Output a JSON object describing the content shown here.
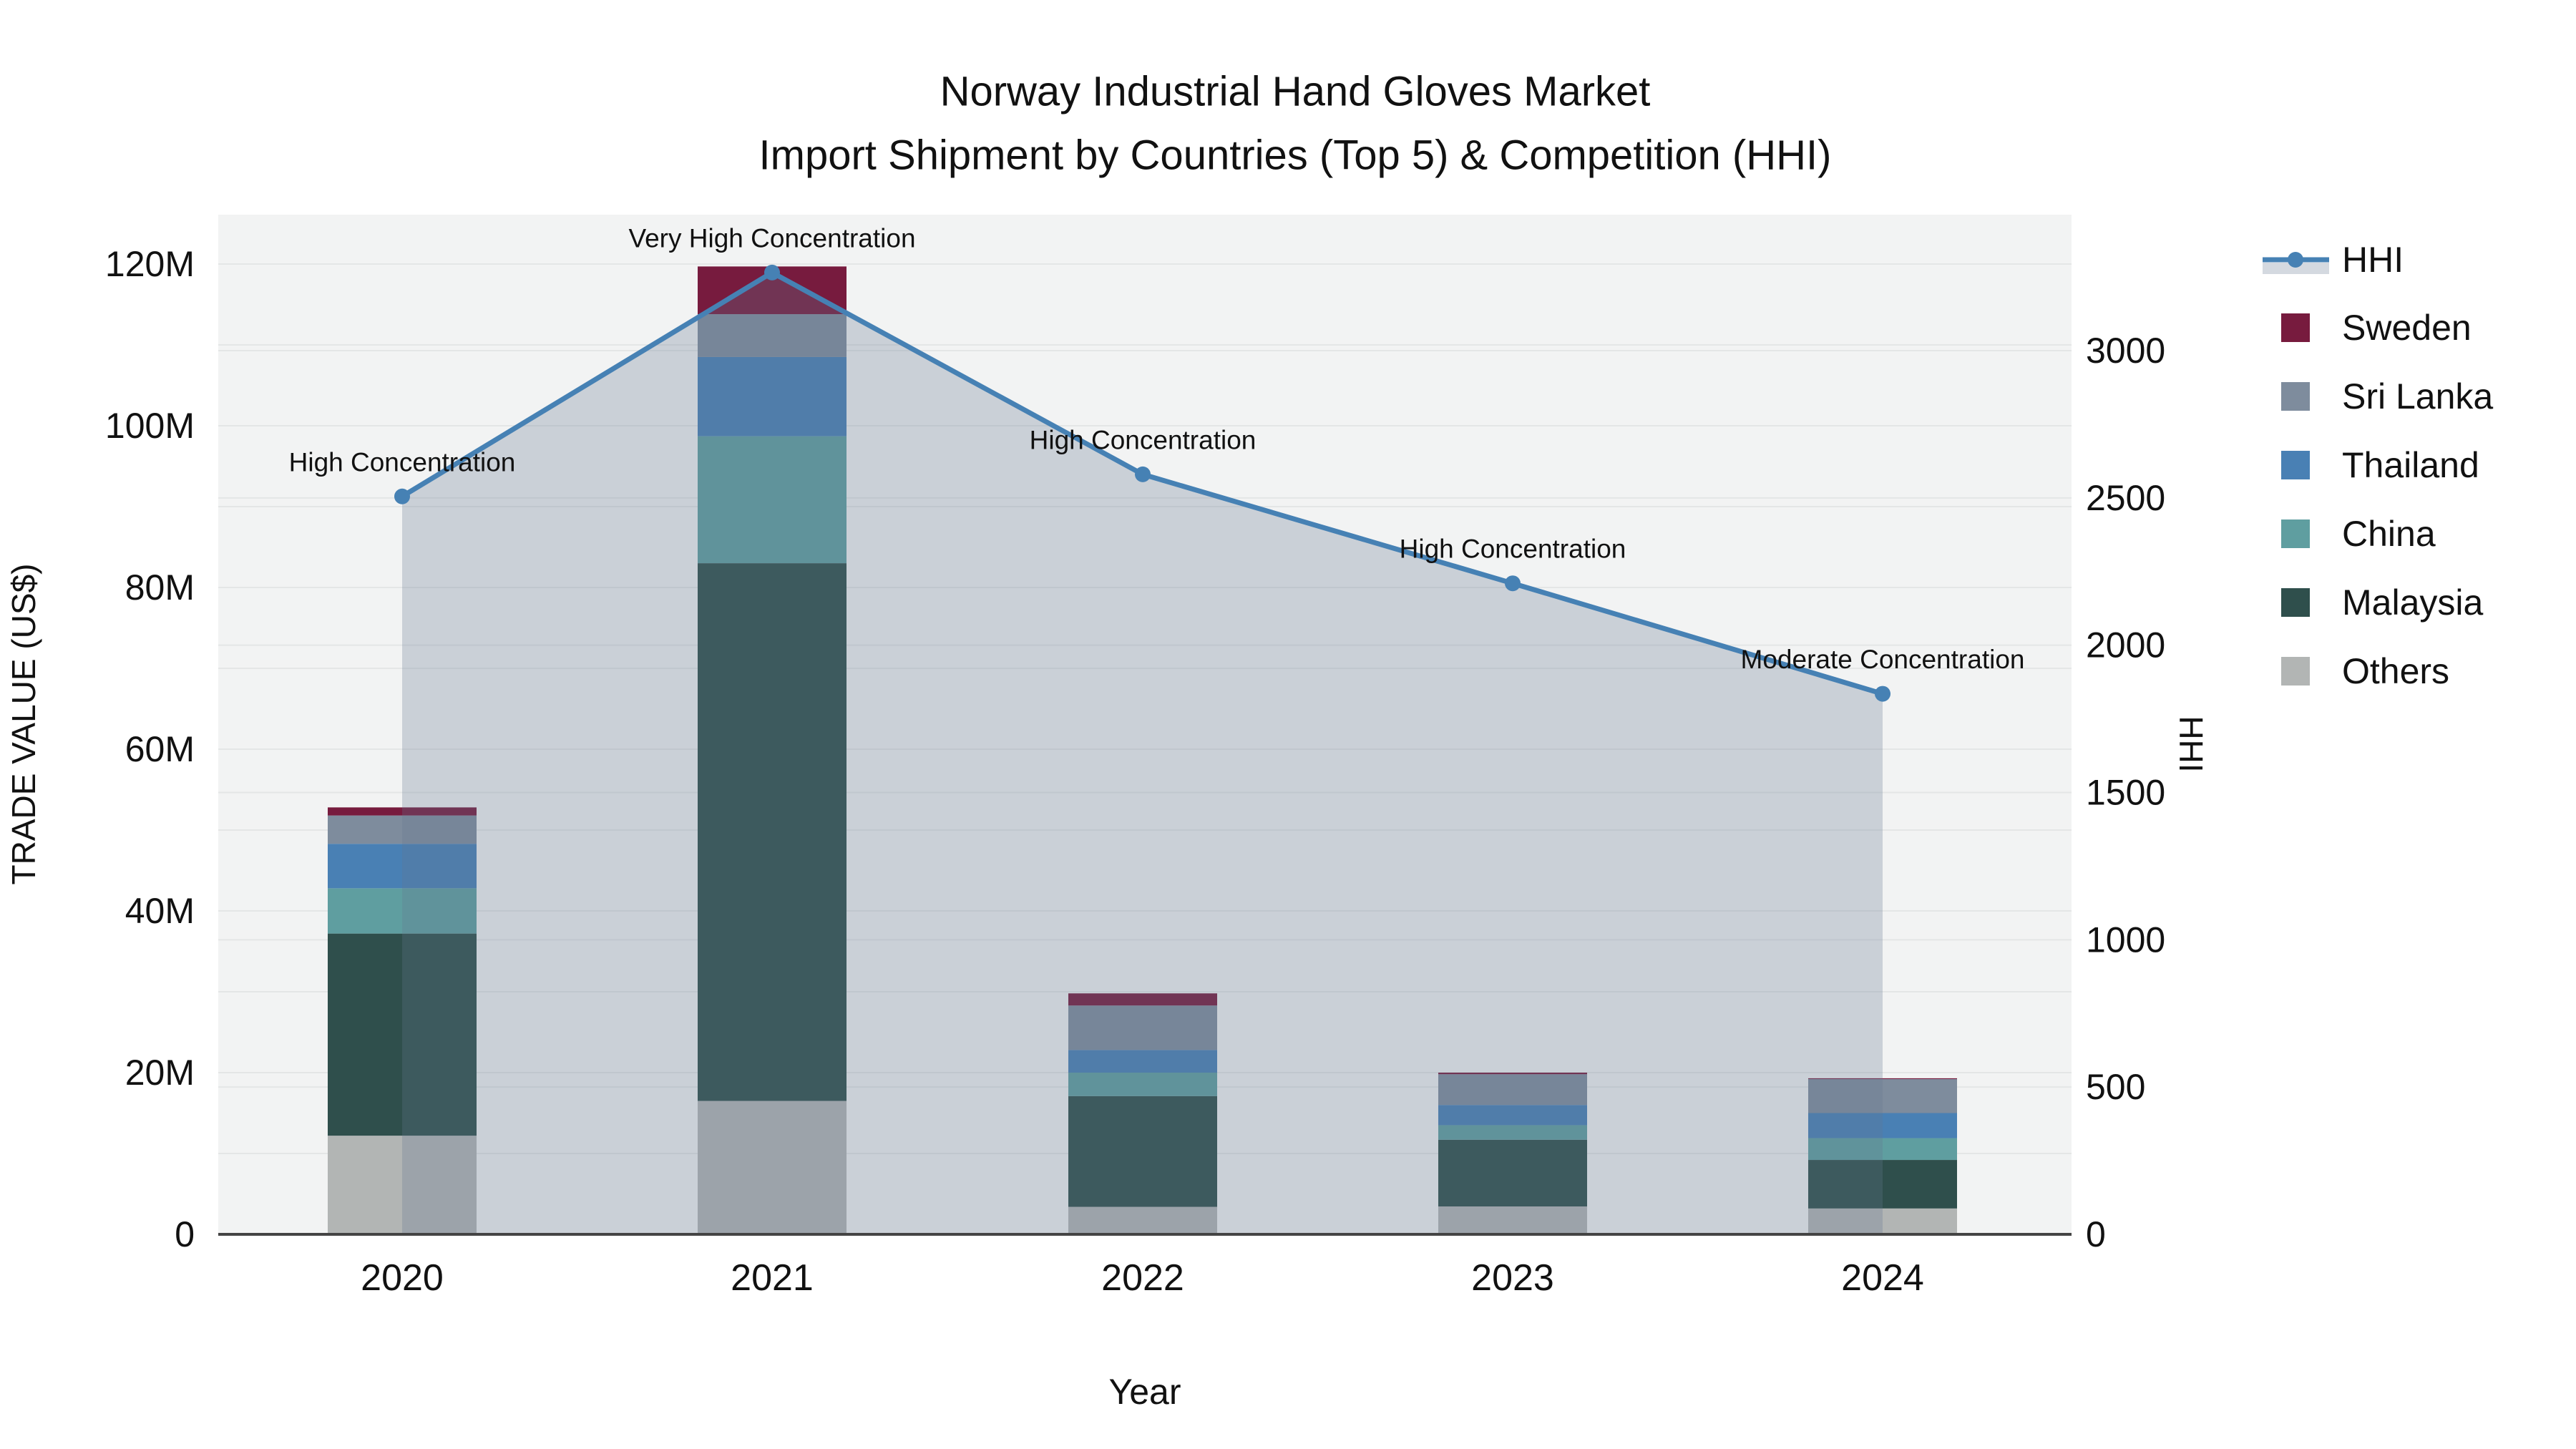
{
  "title": {
    "line1": "Norway Industrial Hand Gloves Market",
    "line2": "Import Shipment by Countries (Top 5) & Competition (HHI)"
  },
  "chart_data": {
    "type": "bar+line",
    "units": "USD millions (left axis), HHI index (right axis)",
    "categories": [
      "2020",
      "2021",
      "2022",
      "2023",
      "2024"
    ],
    "bar_series": [
      {
        "name": "Sweden",
        "color": "#771B3E",
        "values": [
          1.0,
          5.9,
          1.5,
          0.2,
          0.1
        ]
      },
      {
        "name": "Sri Lanka",
        "color": "#7E8C9D",
        "values": [
          3.5,
          5.3,
          5.5,
          3.8,
          4.2
        ]
      },
      {
        "name": "Thailand",
        "color": "#4980B4",
        "values": [
          5.5,
          9.8,
          2.8,
          2.5,
          3.1
        ]
      },
      {
        "name": "China",
        "color": "#5F9EA0",
        "values": [
          5.6,
          15.7,
          2.9,
          1.8,
          2.7
        ]
      },
      {
        "name": "Malaysia",
        "color": "#2F4F4C",
        "values": [
          25.0,
          66.5,
          13.7,
          8.25,
          6.0
        ]
      },
      {
        "name": "Others",
        "color": "#B2B5B4",
        "values": [
          12.2,
          16.5,
          3.4,
          3.45,
          3.2
        ]
      }
    ],
    "stack_order_bottom_to_top": [
      "Others",
      "Malaysia",
      "China",
      "Thailand",
      "Sri Lanka",
      "Sweden"
    ],
    "line_series": {
      "name": "HHI",
      "color": "#4681B4",
      "area_fill": "rgba(100,119,143,0.28)",
      "values": [
        2505,
        3265,
        2580,
        2210,
        1835
      ]
    },
    "annotations": [
      {
        "year": "2020",
        "text": "High Concentration"
      },
      {
        "year": "2021",
        "text": "Very High Concentration"
      },
      {
        "year": "2022",
        "text": "High Concentration"
      },
      {
        "year": "2023",
        "text": "High Concentration"
      },
      {
        "year": "2024",
        "text": "Moderate Concentration"
      }
    ],
    "left_axis": {
      "title": "TRADE VALUE (US$)",
      "tick_labels": [
        "0",
        "20M",
        "40M",
        "60M",
        "80M",
        "100M",
        "120M"
      ],
      "tick_values": [
        0,
        20,
        40,
        60,
        80,
        100,
        120
      ],
      "minor_grid_step": 10,
      "range": [
        0,
        126
      ]
    },
    "right_axis": {
      "title": "HHI",
      "tick_labels": [
        "0",
        "500",
        "1000",
        "1500",
        "2000",
        "2500",
        "3000"
      ],
      "tick_values": [
        0,
        500,
        1000,
        1500,
        2000,
        2500,
        3000
      ],
      "grid_step": 500,
      "range": [
        0,
        3460
      ]
    },
    "x_axis": {
      "title": "Year",
      "labels": [
        "2020",
        "2021",
        "2022",
        "2023",
        "2024"
      ]
    },
    "legend": {
      "entries": [
        "HHI",
        "Sweden",
        "Sri Lanka",
        "Thailand",
        "China",
        "Malaysia",
        "Others"
      ],
      "position": "right-top"
    },
    "colors": {
      "plot_background": "#f2f3f3",
      "gridline": "#e4e6e6",
      "axis_line": "#444444",
      "hhi_line": "#4681B4"
    }
  }
}
